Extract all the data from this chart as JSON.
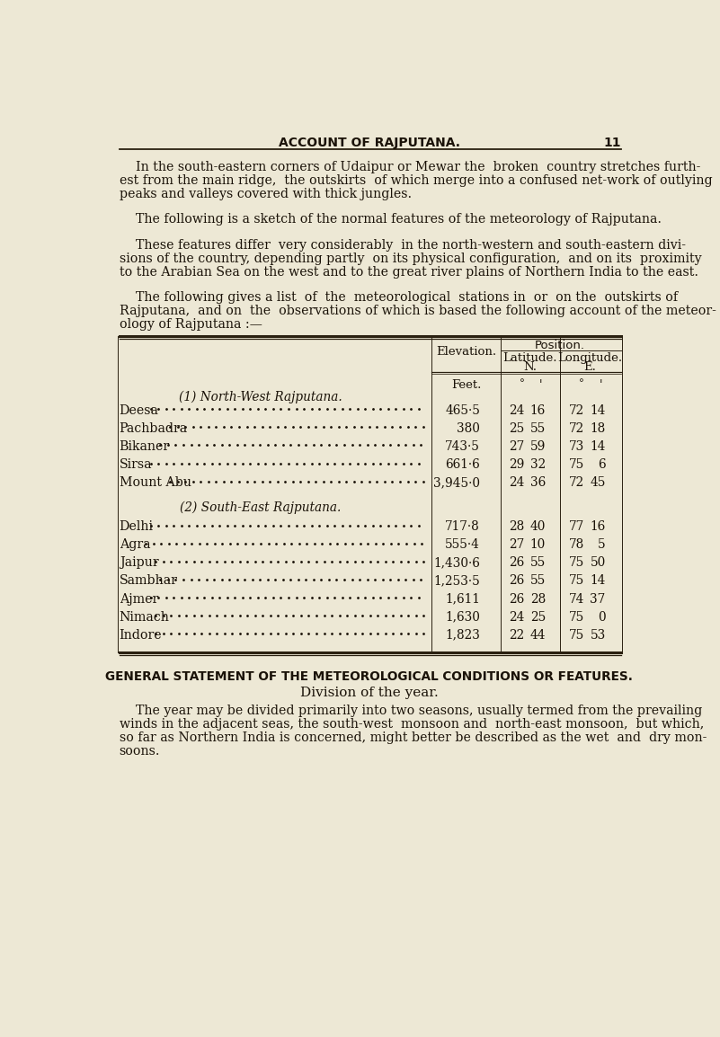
{
  "bg_color": "#ede8d5",
  "text_color": "#1a1208",
  "page_title": "ACCOUNT OF RAJPUTANA.",
  "page_number": "11",
  "paragraph1_lines": [
    "    In the south-eastern corners of Udaipur or Mewar the  broken  country stretches furth-",
    "est from the main ridge,  the outskirts  of which merge into a confused net-work of outlying",
    "peaks and valleys covered with thick jungles."
  ],
  "paragraph2_lines": [
    "    The following is a sketch of the normal features of the meteorology of Rajputana."
  ],
  "paragraph3_lines": [
    "    These features differ  very considerably  in the north-western and south-eastern divi-",
    "sions of the country, depending partly  on its physical configuration,  and on its  proximity",
    "to the Arabian Sea on the west and to the great river plains of Northern India to the east."
  ],
  "paragraph4_lines": [
    "    The following gives a list  of  the  meteorological  stations in  or  on the  outskirts of",
    "Rajputana,  and on  the  observations of which is based the following account of the meteor-",
    "ology of Rajputana :—"
  ],
  "section_heading": "GENERAL STATEMENT OF THE METEOROLOGICAL CONDITIONS OR FEATURES.",
  "section_subheading": "Division of the year.",
  "paragraph5_lines": [
    "    The year may be divided primarily into two seasons, usually termed from the prevailing",
    "winds in the adjacent seas, the south-west  monsoon and  north-east monsoon,  but which,",
    "so far as Northern India is concerned, might better be described as the wet  and  dry mon-",
    "soons."
  ],
  "nw_header": "(1) North-West Rajputana.",
  "se_header": "(2) South-East Rajputana.",
  "nw_stations": [
    {
      "name": "Deesa",
      "elev": "465·5",
      "lat_d": "24",
      "lat_m": "16",
      "lon_d": "72",
      "lon_m": "14"
    },
    {
      "name": "Pachbadra",
      "elev": "380",
      "lat_d": "25",
      "lat_m": "55",
      "lon_d": "72",
      "lon_m": "18"
    },
    {
      "name": "Bikaner",
      "elev": "743·5",
      "lat_d": "27",
      "lat_m": "59",
      "lon_d": "73",
      "lon_m": "14"
    },
    {
      "name": "Sirsa",
      "elev": "661·6",
      "lat_d": "29",
      "lat_m": "32",
      "lon_d": "75",
      "lon_m": "6"
    },
    {
      "name": "Mount Abu",
      "elev": "3,945·0",
      "lat_d": "24",
      "lat_m": "36",
      "lon_d": "72",
      "lon_m": "45"
    }
  ],
  "se_stations": [
    {
      "name": "Delhi",
      "elev": "717·8",
      "lat_d": "28",
      "lat_m": "40",
      "lon_d": "77",
      "lon_m": "16"
    },
    {
      "name": "Agra",
      "elev": "555·4",
      "lat_d": "27",
      "lat_m": "10",
      "lon_d": "78",
      "lon_m": "5"
    },
    {
      "name": "Jaipur",
      "elev": "1,430·6",
      "lat_d": "26",
      "lat_m": "55",
      "lon_d": "75",
      "lon_m": "50"
    },
    {
      "name": "Sambhar",
      "elev": "1,253·5",
      "lat_d": "26",
      "lat_m": "55",
      "lon_d": "75",
      "lon_m": "14"
    },
    {
      "name": "Ajmer",
      "elev": "1,611",
      "lat_d": "26",
      "lat_m": "28",
      "lon_d": "74",
      "lon_m": "37"
    },
    {
      "name": "Nimach",
      "elev": "1,630",
      "lat_d": "24",
      "lat_m": "25",
      "lon_d": "75",
      "lon_m": "0"
    },
    {
      "name": "Indore",
      "elev": "1,823",
      "lat_d": "22",
      "lat_m": "44",
      "lon_d": "75",
      "lon_m": "53"
    }
  ]
}
